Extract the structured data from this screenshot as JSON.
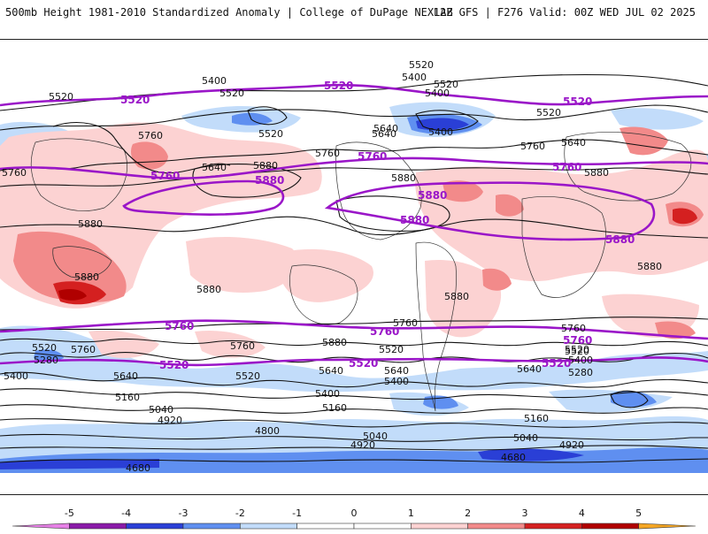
{
  "header": {
    "title": "500mb Height 1981-2010 Standardized Anomaly | College of DuPage NEXLAB",
    "run": "12Z GFS | F276 Valid: 00Z WED JUL 02 2025"
  },
  "colors": {
    "contour_black": "#111111",
    "contour_purple": "#9a16c8",
    "neg5": "#e680e6",
    "neg4": "#8a1aa8",
    "neg3": "#2a3fd6",
    "neg2": "#5f8ff0",
    "neg1": "#c2dcfa",
    "pos1": "#fcd2d2",
    "pos2": "#f28a8a",
    "pos3": "#d42020",
    "pos4": "#b00000",
    "pos5": "#f5a623"
  },
  "contour_labels": {
    "black": [
      {
        "text": "5520"
      },
      {
        "text": "5400"
      },
      {
        "text": "5520"
      },
      {
        "text": "5520"
      },
      {
        "text": "5760"
      },
      {
        "text": "5640"
      },
      {
        "text": "5880"
      },
      {
        "text": "5760"
      },
      {
        "text": "5880"
      },
      {
        "text": "5880"
      },
      {
        "text": "5880"
      },
      {
        "text": "5760"
      },
      {
        "text": "5760"
      },
      {
        "text": "5640"
      },
      {
        "text": "5520"
      },
      {
        "text": "5280"
      },
      {
        "text": "5400"
      },
      {
        "text": "5160"
      },
      {
        "text": "5040"
      },
      {
        "text": "4920"
      },
      {
        "text": "4800"
      },
      {
        "text": "4680"
      },
      {
        "text": "5520"
      },
      {
        "text": "5400"
      },
      {
        "text": "5640"
      },
      {
        "text": "5520"
      },
      {
        "text": "5400"
      },
      {
        "text": "5640"
      },
      {
        "text": "5760"
      },
      {
        "text": "5880"
      },
      {
        "text": "5880"
      },
      {
        "text": "5760"
      },
      {
        "text": "5880"
      },
      {
        "text": "5520"
      },
      {
        "text": "5640"
      },
      {
        "text": "5400"
      },
      {
        "text": "5280"
      },
      {
        "text": "5160"
      },
      {
        "text": "5040"
      },
      {
        "text": "4920"
      },
      {
        "text": "4680"
      },
      {
        "text": "5760"
      },
      {
        "text": "5640"
      },
      {
        "text": "5520"
      },
      {
        "text": "5520"
      },
      {
        "text": "5400"
      },
      {
        "text": "5400"
      },
      {
        "text": "5160"
      },
      {
        "text": "5040"
      },
      {
        "text": "4920"
      },
      {
        "text": "5640"
      },
      {
        "text": "5880"
      },
      {
        "text": "5880"
      },
      {
        "text": "5520"
      },
      {
        "text": "5400"
      },
      {
        "text": "5520"
      },
      {
        "text": "5640"
      },
      {
        "text": "5760"
      }
    ],
    "purple": [
      {
        "text": "5520"
      },
      {
        "text": "5520"
      },
      {
        "text": "5520"
      },
      {
        "text": "5760"
      },
      {
        "text": "5760"
      },
      {
        "text": "5760"
      },
      {
        "text": "5880"
      },
      {
        "text": "5880"
      },
      {
        "text": "5880"
      },
      {
        "text": "5880"
      },
      {
        "text": "5760"
      },
      {
        "text": "5760"
      },
      {
        "text": "5760"
      },
      {
        "text": "5520"
      },
      {
        "text": "5520"
      },
      {
        "text": "5520"
      }
    ]
  },
  "colorbar": {
    "ticks": [
      "-5",
      "-4",
      "-3",
      "-2",
      "-1",
      "0",
      "1",
      "2",
      "3",
      "4",
      "5"
    ]
  }
}
